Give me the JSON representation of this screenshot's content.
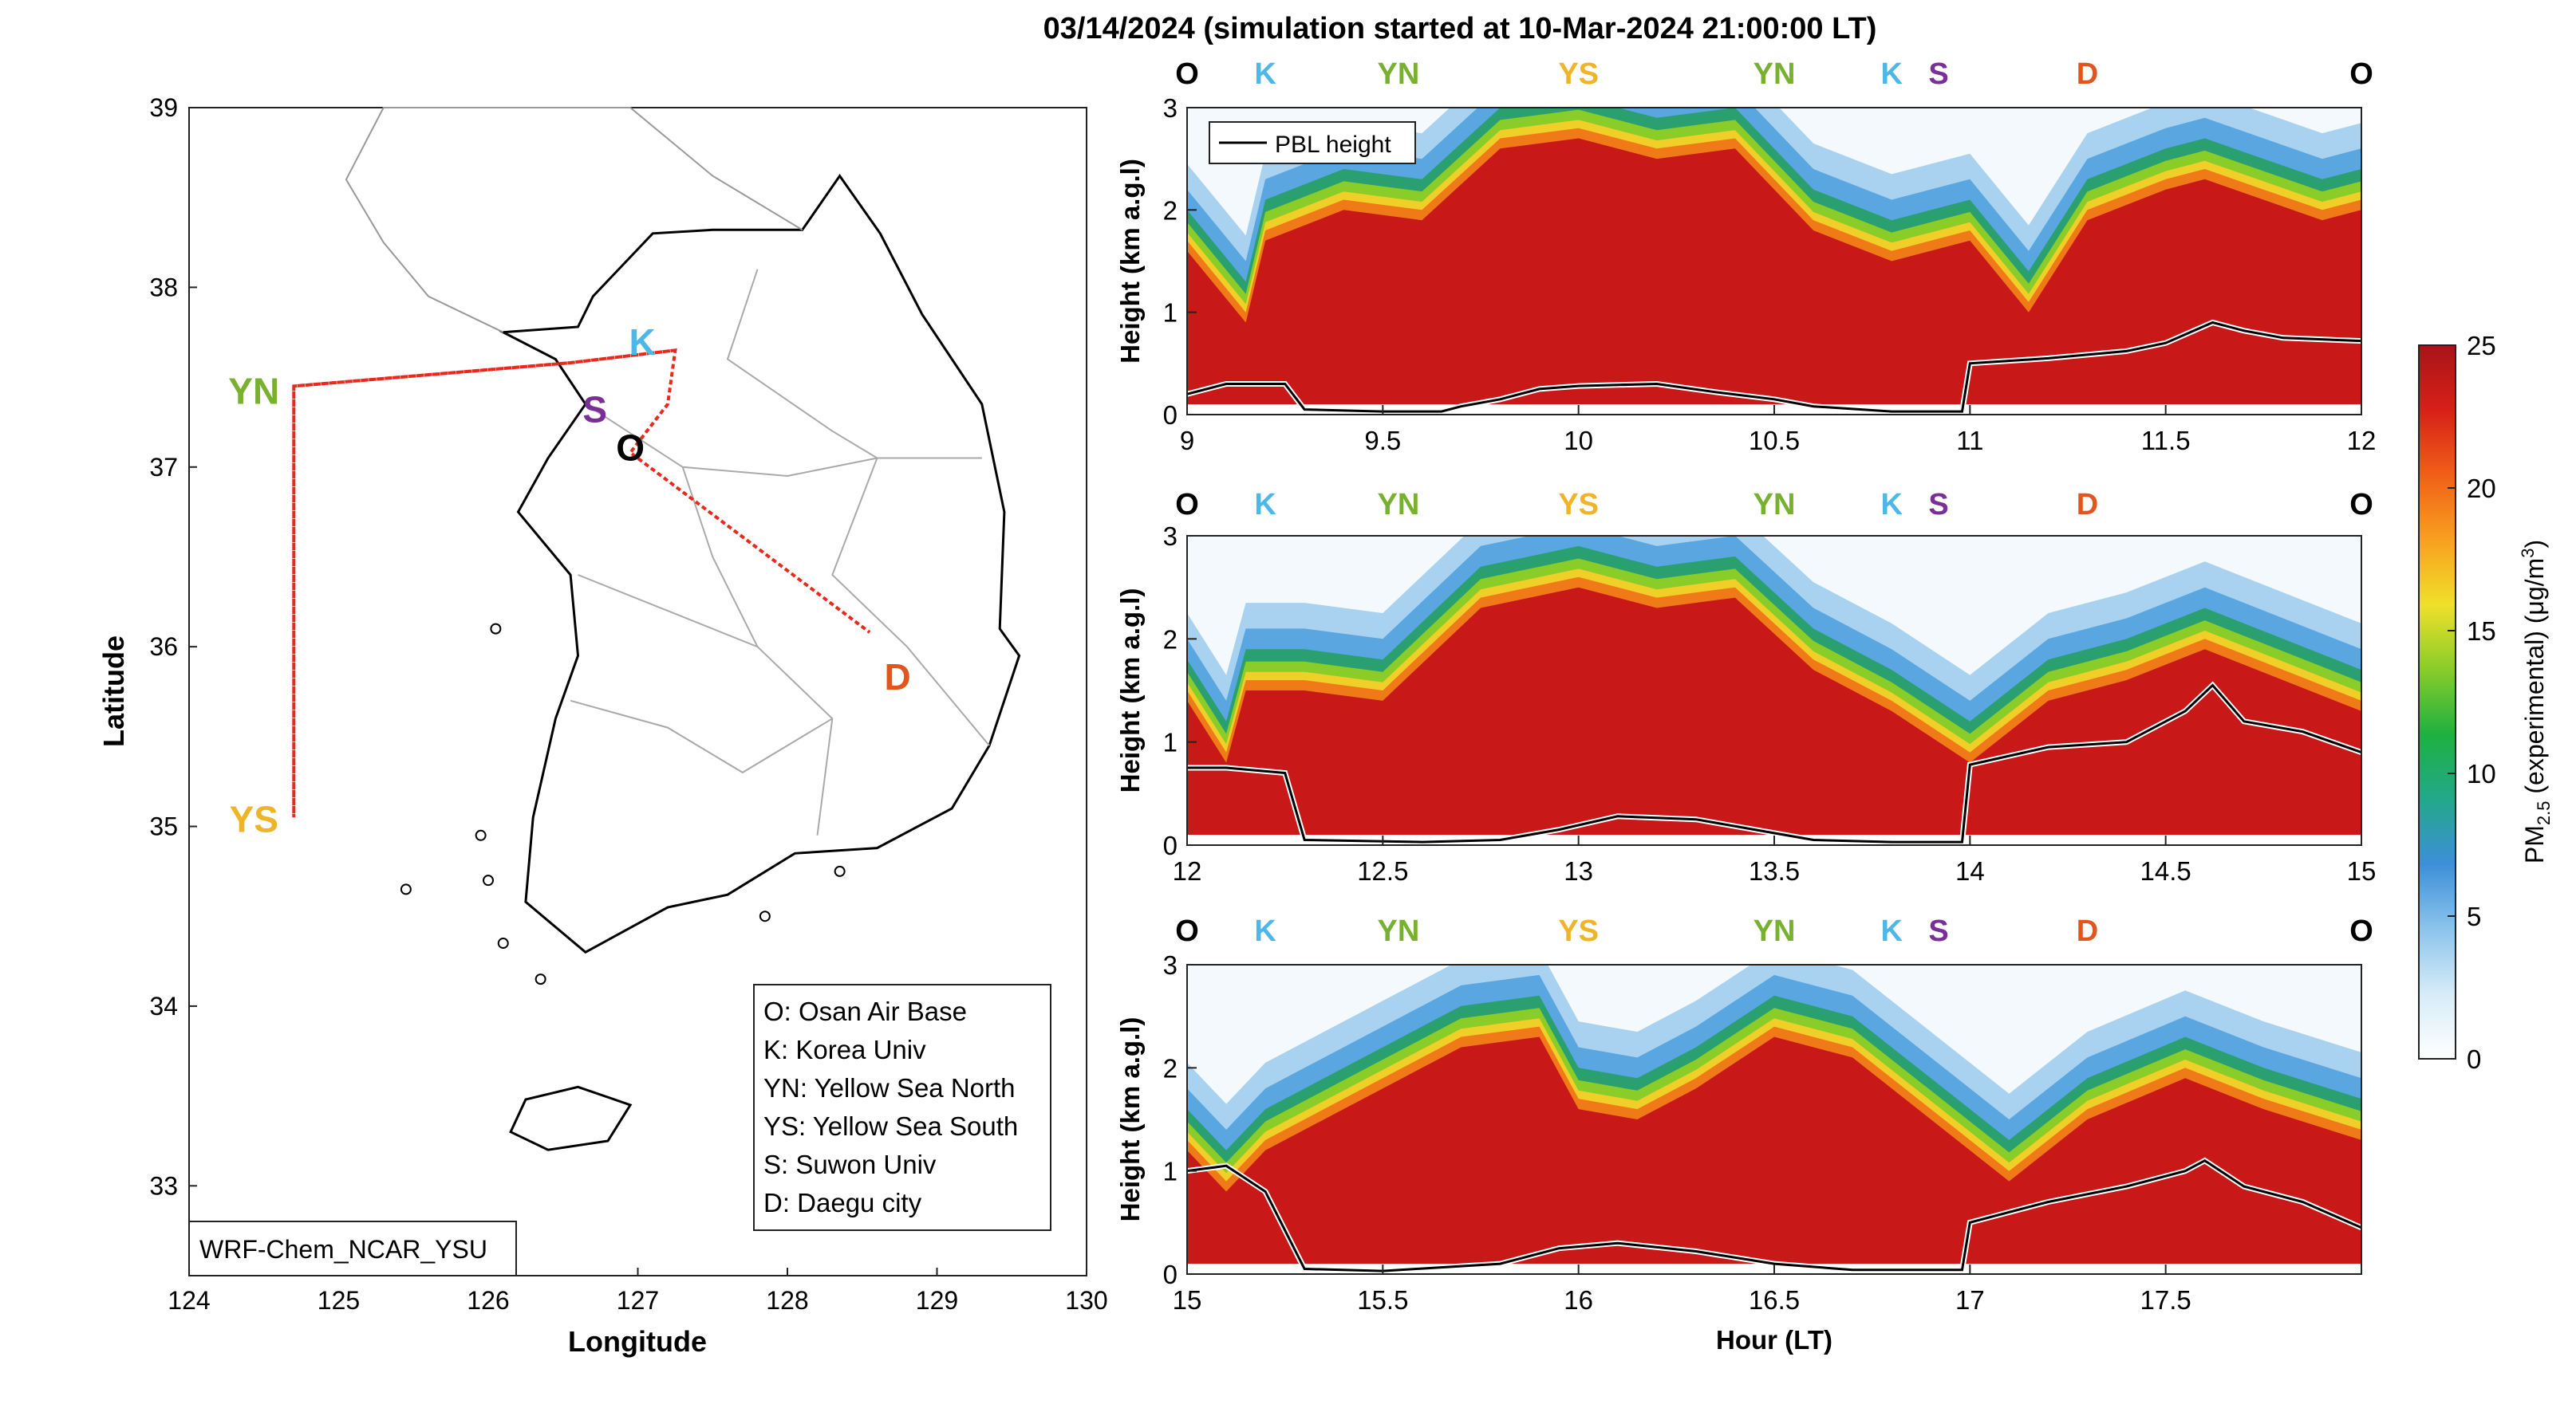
{
  "figure": {
    "title": "03/14/2024 (simulation started at 10-Mar-2024 21:00:00 LT)"
  },
  "colors": {
    "red": "#e8291e",
    "O": "#000000",
    "K": "#4db8e8",
    "YN": "#78b030",
    "YS": "#f0b428",
    "S": "#7a2f96",
    "D": "#e0561e"
  },
  "colormap": [
    "#ffffff",
    "#d6ecf8",
    "#8cc4ec",
    "#3d8fd8",
    "#23a88a",
    "#1fb040",
    "#88cc2a",
    "#f0e02a",
    "#f8a020",
    "#f06018",
    "#d82018",
    "#a81418"
  ],
  "chart_data": [
    {
      "type": "map",
      "panel": "map",
      "xlabel": "Longitude",
      "ylabel": "Latitude",
      "xlim": [
        124,
        130
      ],
      "ylim": [
        32.5,
        39
      ],
      "xticks": [
        "124",
        "125",
        "126",
        "127",
        "128",
        "129",
        "130"
      ],
      "yticks": [
        "33",
        "34",
        "35",
        "36",
        "37",
        "38",
        "39"
      ],
      "model_label": "WRF-Chem_NCAR_YSU",
      "legend": [
        "O: Osan Air Base",
        "K: Korea Univ",
        "YN: Yellow Sea North",
        "YS: Yellow Sea South",
        "S: Suwon Univ",
        "D: Daegu city"
      ],
      "sites": [
        {
          "label": "O",
          "lon": 126.95,
          "lat": 37.08
        },
        {
          "label": "K",
          "lon": 127.03,
          "lat": 37.59
        },
        {
          "label": "YN",
          "lon": 124.7,
          "lat": 37.45
        },
        {
          "label": "YS",
          "lon": 124.7,
          "lat": 35.05
        },
        {
          "label": "S",
          "lon": 126.82,
          "lat": 37.32
        },
        {
          "label": "D",
          "lon": 128.55,
          "lat": 35.85
        }
      ],
      "flight_track": [
        [
          127.25,
          37.65
        ],
        [
          126.55,
          37.58
        ],
        [
          124.7,
          37.45
        ],
        [
          124.7,
          35.05
        ],
        [
          124.7,
          37.45
        ],
        [
          126.55,
          37.58
        ],
        [
          127.25,
          37.65
        ],
        [
          127.2,
          37.35
        ],
        [
          126.95,
          37.08
        ],
        [
          128.55,
          36.08
        ]
      ]
    },
    {
      "type": "heatmap",
      "panel": "curtain-1",
      "xlim": [
        9,
        12
      ],
      "ylim": [
        0,
        3
      ],
      "xticks": [
        "9",
        "9.5",
        "10",
        "10.5",
        "11",
        "11.5",
        "12"
      ],
      "yticks": [
        "0",
        "1",
        "2",
        "3"
      ],
      "ylabel": "Height (km a.g.l)",
      "xlabel": "",
      "site_markers": [
        "O",
        "K",
        "YN",
        "YS",
        "YN",
        "K",
        "S",
        "D",
        "O"
      ],
      "legend": "PBL height",
      "pbl_height": {
        "x": [
          9,
          9.1,
          9.25,
          9.3,
          9.5,
          9.65,
          9.7,
          9.8,
          9.9,
          10.0,
          10.2,
          10.35,
          10.5,
          10.6,
          10.8,
          10.98,
          11.0,
          11.2,
          11.4,
          11.5,
          11.62,
          11.7,
          11.8,
          12.0
        ],
        "y": [
          0.2,
          0.3,
          0.3,
          0.05,
          0.03,
          0.03,
          0.08,
          0.15,
          0.25,
          0.28,
          0.3,
          0.22,
          0.15,
          0.08,
          0.03,
          0.03,
          0.5,
          0.55,
          0.62,
          0.7,
          0.9,
          0.82,
          0.75,
          0.72
        ]
      },
      "pm25_top_km": {
        "x": [
          9,
          9.15,
          9.2,
          9.4,
          9.6,
          9.8,
          10.0,
          10.2,
          10.4,
          10.6,
          10.8,
          11.0,
          11.15,
          11.3,
          11.5,
          11.6,
          11.75,
          11.9,
          12.0
        ],
        "y": [
          1.6,
          0.9,
          1.7,
          2.0,
          1.9,
          2.6,
          2.7,
          2.5,
          2.6,
          1.8,
          1.5,
          1.7,
          1.0,
          1.9,
          2.2,
          2.3,
          2.1,
          1.9,
          2.0
        ]
      }
    },
    {
      "type": "heatmap",
      "panel": "curtain-2",
      "xlim": [
        12,
        15
      ],
      "ylim": [
        0,
        3
      ],
      "xticks": [
        "12",
        "12.5",
        "13",
        "13.5",
        "14",
        "14.5",
        "15"
      ],
      "yticks": [
        "0",
        "1",
        "2",
        "3"
      ],
      "ylabel": "Height (km a.g.l)",
      "xlabel": "",
      "site_markers": [
        "O",
        "K",
        "YN",
        "YS",
        "YN",
        "K",
        "S",
        "D",
        "O"
      ],
      "pbl_height": {
        "x": [
          12,
          12.1,
          12.25,
          12.3,
          12.6,
          12.8,
          12.95,
          13.1,
          13.3,
          13.45,
          13.6,
          13.8,
          13.98,
          14.0,
          14.2,
          14.4,
          14.55,
          14.62,
          14.7,
          14.85,
          15.0
        ],
        "y": [
          0.75,
          0.75,
          0.7,
          0.05,
          0.03,
          0.05,
          0.15,
          0.28,
          0.25,
          0.15,
          0.05,
          0.03,
          0.03,
          0.78,
          0.95,
          1.0,
          1.3,
          1.55,
          1.2,
          1.1,
          0.9
        ]
      },
      "pm25_top_km": {
        "x": [
          12,
          12.1,
          12.15,
          12.3,
          12.5,
          12.75,
          13.0,
          13.2,
          13.4,
          13.6,
          13.8,
          14.0,
          14.2,
          14.4,
          14.6,
          14.8,
          15.0
        ],
        "y": [
          1.4,
          0.8,
          1.5,
          1.5,
          1.4,
          2.3,
          2.5,
          2.3,
          2.4,
          1.7,
          1.3,
          0.8,
          1.4,
          1.6,
          1.9,
          1.6,
          1.3
        ]
      }
    },
    {
      "type": "heatmap",
      "panel": "curtain-3",
      "xlim": [
        15,
        18
      ],
      "ylim": [
        0,
        3
      ],
      "xticks": [
        "15",
        "15.5",
        "16",
        "16.5",
        "17",
        "17.5"
      ],
      "yticks": [
        "0",
        "1",
        "2",
        "3"
      ],
      "ylabel": "Height (km a.g.l)",
      "xlabel": "Hour (LT)",
      "site_markers": [
        "O",
        "K",
        "YN",
        "YS",
        "YN",
        "K",
        "S",
        "D",
        "O"
      ],
      "pbl_height": {
        "x": [
          15,
          15.1,
          15.2,
          15.3,
          15.5,
          15.8,
          15.95,
          16.1,
          16.3,
          16.5,
          16.7,
          16.98,
          17.0,
          17.2,
          17.4,
          17.55,
          17.6,
          17.7,
          17.85,
          18.0
        ],
        "y": [
          1.0,
          1.05,
          0.8,
          0.05,
          0.03,
          0.1,
          0.25,
          0.3,
          0.22,
          0.1,
          0.04,
          0.04,
          0.5,
          0.7,
          0.85,
          1.0,
          1.1,
          0.85,
          0.7,
          0.45
        ]
      },
      "pm25_top_km": {
        "x": [
          15,
          15.1,
          15.2,
          15.3,
          15.5,
          15.7,
          15.9,
          16.0,
          16.15,
          16.3,
          16.5,
          16.7,
          16.9,
          17.1,
          17.3,
          17.55,
          17.75,
          18.0
        ],
        "y": [
          1.2,
          0.8,
          1.2,
          1.4,
          1.8,
          2.2,
          2.3,
          1.6,
          1.5,
          1.8,
          2.3,
          2.1,
          1.5,
          0.9,
          1.5,
          1.9,
          1.6,
          1.3
        ]
      }
    },
    {
      "type": "colorbar",
      "panel": "colorbar",
      "label_main": "PM",
      "label_sub": "2.5",
      "label_rest": " (experimental) (μg/m",
      "label_sup": "3",
      "label_end": ")",
      "ticks": [
        "0",
        "5",
        "10",
        "15",
        "20",
        "25"
      ],
      "range": [
        0,
        25
      ]
    }
  ]
}
